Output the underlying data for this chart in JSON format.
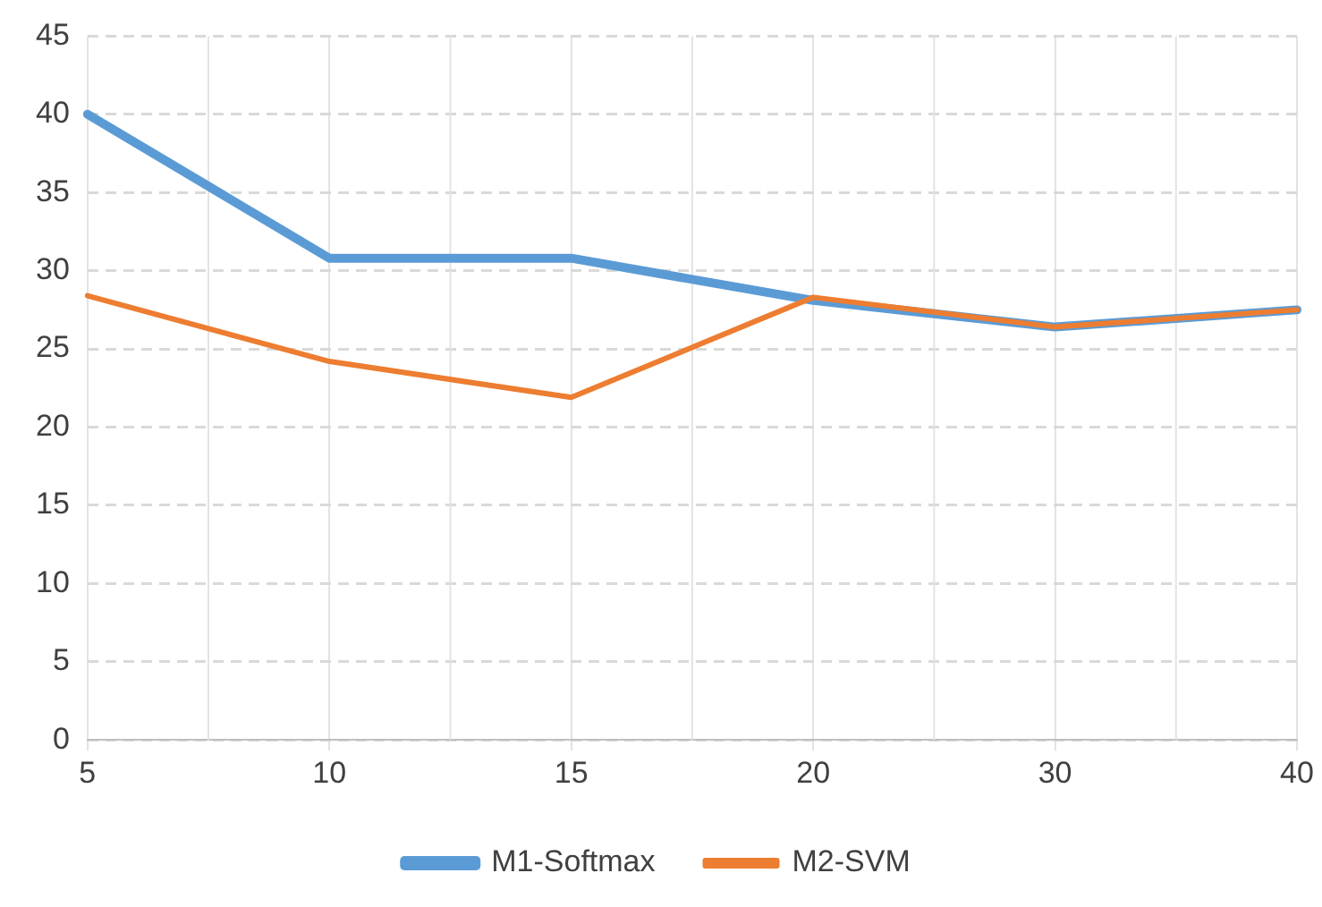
{
  "chart_data": {
    "type": "line",
    "categories": [
      "5",
      "10",
      "15",
      "20",
      "30",
      "40"
    ],
    "series": [
      {
        "name": "M1-Softmax",
        "color": "#5b9bd5",
        "values": [
          40,
          30.8,
          30.8,
          28.1,
          26.4,
          27.5
        ]
      },
      {
        "name": "M2-SVM",
        "color": "#ed7d31",
        "values": [
          28.4,
          24.2,
          21.9,
          28.3,
          26.4,
          27.5
        ]
      }
    ],
    "ylim": [
      0,
      45
    ],
    "yticks": [
      0,
      5,
      10,
      15,
      20,
      25,
      30,
      35,
      40,
      45
    ],
    "grid": true,
    "legend": "bottom",
    "marker": "none",
    "line_style": "solid"
  }
}
